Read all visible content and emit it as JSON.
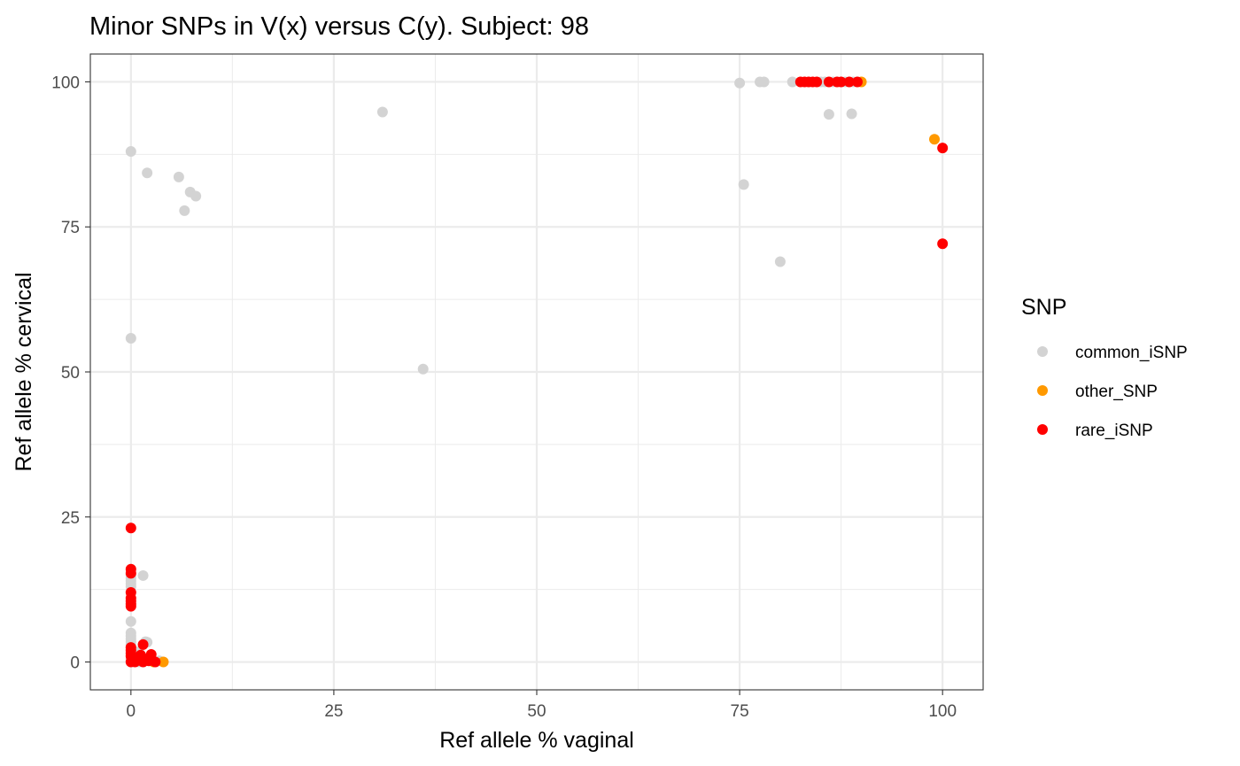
{
  "chart_data": {
    "type": "scatter",
    "title": "Minor SNPs in V(x) versus C(y). Subject: 98",
    "xlabel": "Ref allele % vaginal",
    "ylabel": "Ref allele % cervical",
    "xlim": [
      -5,
      105
    ],
    "ylim": [
      -4.8,
      104.8
    ],
    "x_ticks": [
      0,
      25,
      50,
      75,
      100
    ],
    "y_ticks": [
      0,
      25,
      50,
      75,
      100
    ],
    "x_tick_labels": [
      "0",
      "25",
      "50",
      "75",
      "100"
    ],
    "y_tick_labels": [
      "0",
      "25",
      "50",
      "75",
      "100"
    ],
    "grid": true,
    "legend": {
      "title": "SNP",
      "position": "right"
    },
    "series": [
      {
        "name": "common_iSNP",
        "color": "#d3d3d3",
        "points": [
          [
            0,
            88
          ],
          [
            0,
            55.8
          ],
          [
            2,
            84.3
          ],
          [
            5.9,
            83.6
          ],
          [
            7.3,
            81
          ],
          [
            8,
            80.3
          ],
          [
            6.6,
            77.8
          ],
          [
            31,
            94.8
          ],
          [
            36,
            50.5
          ],
          [
            75,
            99.8
          ],
          [
            77.5,
            100
          ],
          [
            78,
            100
          ],
          [
            81.5,
            100
          ],
          [
            85,
            100
          ],
          [
            85.5,
            100
          ],
          [
            86.5,
            100
          ],
          [
            88,
            100
          ],
          [
            89,
            100
          ],
          [
            86,
            94.4
          ],
          [
            88.8,
            94.5
          ],
          [
            75.5,
            82.3
          ],
          [
            80,
            69
          ],
          [
            0,
            15
          ],
          [
            0,
            14.5
          ],
          [
            0,
            14
          ],
          [
            0,
            13.5
          ],
          [
            0,
            13
          ],
          [
            1.5,
            14.9
          ],
          [
            0,
            7
          ],
          [
            0,
            5
          ],
          [
            0,
            4.5
          ],
          [
            0,
            4
          ],
          [
            0,
            3.5
          ],
          [
            0,
            3
          ],
          [
            0,
            2.5
          ],
          [
            1.8,
            3.5
          ],
          [
            2,
            3.4
          ],
          [
            1,
            1.8
          ],
          [
            0.5,
            1
          ],
          [
            0,
            0.5
          ],
          [
            1.5,
            0.2
          ],
          [
            1,
            0
          ],
          [
            3.5,
            0.2
          ],
          [
            3,
            0
          ]
        ]
      },
      {
        "name": "other_SNP",
        "color": "#ff9900",
        "points": [
          [
            90,
            100
          ],
          [
            99,
            90.1
          ],
          [
            4,
            0
          ],
          [
            2.8,
            0
          ]
        ]
      },
      {
        "name": "rare_iSNP",
        "color": "#ff0000",
        "points": [
          [
            100,
            88.6
          ],
          [
            100,
            72.1
          ],
          [
            82.5,
            100
          ],
          [
            83,
            100
          ],
          [
            83.5,
            100
          ],
          [
            84,
            100
          ],
          [
            84.5,
            100
          ],
          [
            86,
            100
          ],
          [
            87,
            100
          ],
          [
            87.5,
            100
          ],
          [
            88.5,
            100
          ],
          [
            89.5,
            100
          ],
          [
            0,
            23.1
          ],
          [
            0,
            16
          ],
          [
            0,
            15.3
          ],
          [
            0,
            12
          ],
          [
            0,
            11
          ],
          [
            0,
            10.5
          ],
          [
            0,
            10
          ],
          [
            0,
            9.6
          ],
          [
            0,
            2.5
          ],
          [
            0,
            2
          ],
          [
            0,
            1.5
          ],
          [
            0,
            1
          ],
          [
            0,
            0
          ],
          [
            0.5,
            0
          ],
          [
            1,
            0.3
          ],
          [
            1.5,
            0
          ],
          [
            2,
            0.5
          ],
          [
            2.2,
            0.2
          ],
          [
            2.5,
            1.3
          ],
          [
            1.5,
            3
          ],
          [
            1.2,
            1.2
          ],
          [
            3,
            0
          ]
        ]
      }
    ]
  }
}
